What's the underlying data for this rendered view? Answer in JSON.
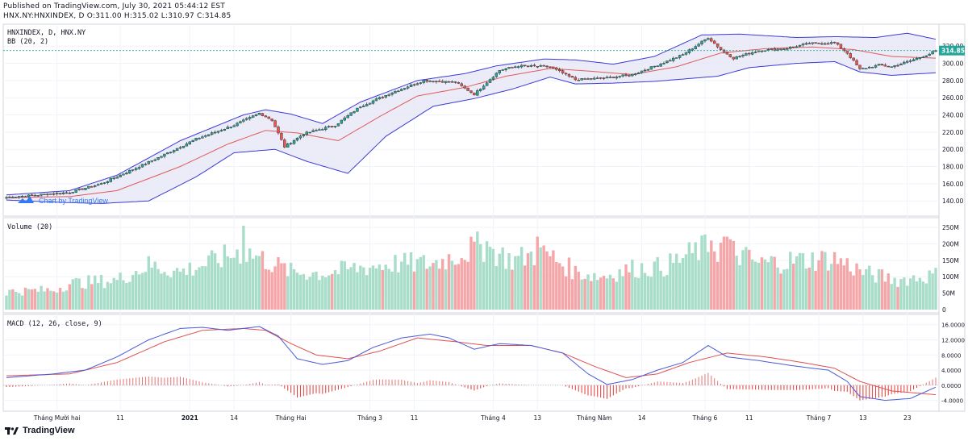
{
  "header": {
    "published": "Published on TradingView.com, July 30, 2021 05:44:12 EST",
    "ohlc": "HNX.NY:HNXINDEX, D O:311.00 H:315.02 L:310.97 C:314.85"
  },
  "panes": {
    "price": {
      "title": "HNXINDEX, D, HNX.NY",
      "indicator": "BB (20, 2)",
      "watermark": "Chart by TradingView",
      "last_label": "314.85"
    },
    "volume": {
      "title": "Volume (20)"
    },
    "macd": {
      "title": "MACD (12, 26, close, 9)"
    }
  },
  "footer": {
    "brand": "TradingView"
  },
  "colors": {
    "up": "#26a69a",
    "down": "#ef5350",
    "band": "#3b3bd6",
    "mid": "#e05a5a",
    "fill": "#e6e6f5",
    "vol_up": "#a8ddc9",
    "vol_down": "#f5a6a9",
    "macd": "#4a5ad8",
    "signal": "#e05050"
  },
  "chart_data": [
    {
      "type": "candlestick",
      "title": "HNXINDEX, D, HNX.NY",
      "indicator": "BB (20, 2)",
      "ylim": [
        128,
        338
      ],
      "yticks": [
        "140.00",
        "160.00",
        "180.00",
        "200.00",
        "220.00",
        "240.00",
        "260.00",
        "280.00",
        "300.00",
        "320.00"
      ],
      "last_value": 314.85,
      "x_labels": [
        "Tháng Mười hai",
        "11",
        "2021",
        "14",
        "Tháng Hai",
        "Tháng 3",
        "11",
        "Tháng 4",
        "13",
        "Tháng Năm",
        "14",
        "Tháng 6",
        "11",
        "Tháng 7",
        "13",
        "23"
      ],
      "x_label_index": [
        16,
        36,
        58,
        72,
        90,
        115,
        129,
        154,
        168,
        186,
        201,
        221,
        235,
        257,
        271,
        285
      ],
      "close_anchors": [
        [
          0,
          144
        ],
        [
          10,
          147
        ],
        [
          20,
          150
        ],
        [
          30,
          160
        ],
        [
          45,
          185
        ],
        [
          60,
          212
        ],
        [
          72,
          228
        ],
        [
          80,
          242
        ],
        [
          84,
          234
        ],
        [
          88,
          203
        ],
        [
          94,
          218
        ],
        [
          104,
          228
        ],
        [
          112,
          250
        ],
        [
          122,
          266
        ],
        [
          132,
          280
        ],
        [
          142,
          278
        ],
        [
          148,
          264
        ],
        [
          156,
          292
        ],
        [
          162,
          297
        ],
        [
          172,
          296
        ],
        [
          180,
          281
        ],
        [
          190,
          283
        ],
        [
          198,
          287
        ],
        [
          206,
          298
        ],
        [
          214,
          310
        ],
        [
          222,
          330
        ],
        [
          226,
          316
        ],
        [
          230,
          306
        ],
        [
          238,
          315
        ],
        [
          246,
          317
        ],
        [
          254,
          323
        ],
        [
          262,
          324
        ],
        [
          266,
          312
        ],
        [
          270,
          293
        ],
        [
          276,
          298
        ],
        [
          280,
          296
        ],
        [
          286,
          303
        ],
        [
          292,
          311
        ],
        [
          294,
          314.85
        ]
      ],
      "bb_upper_anchors": [
        [
          0,
          147
        ],
        [
          20,
          152
        ],
        [
          35,
          170
        ],
        [
          55,
          210
        ],
        [
          75,
          240
        ],
        [
          82,
          246
        ],
        [
          90,
          241
        ],
        [
          100,
          230
        ],
        [
          112,
          255
        ],
        [
          130,
          280
        ],
        [
          145,
          288
        ],
        [
          155,
          297
        ],
        [
          170,
          305
        ],
        [
          180,
          304
        ],
        [
          192,
          299
        ],
        [
          205,
          308
        ],
        [
          220,
          333
        ],
        [
          232,
          334
        ],
        [
          250,
          330
        ],
        [
          262,
          331
        ],
        [
          275,
          330
        ],
        [
          285,
          335
        ],
        [
          294,
          328
        ]
      ],
      "bb_lower_anchors": [
        [
          0,
          141
        ],
        [
          20,
          138
        ],
        [
          30,
          137
        ],
        [
          45,
          140
        ],
        [
          60,
          168
        ],
        [
          72,
          196
        ],
        [
          85,
          200
        ],
        [
          95,
          186
        ],
        [
          108,
          172
        ],
        [
          120,
          215
        ],
        [
          135,
          250
        ],
        [
          148,
          259
        ],
        [
          160,
          270
        ],
        [
          172,
          284
        ],
        [
          180,
          276
        ],
        [
          192,
          277
        ],
        [
          205,
          279
        ],
        [
          215,
          282
        ],
        [
          225,
          285
        ],
        [
          235,
          295
        ],
        [
          250,
          300
        ],
        [
          262,
          302
        ],
        [
          270,
          290
        ],
        [
          280,
          286
        ],
        [
          294,
          289
        ]
      ],
      "bb_mid_anchors": [
        [
          0,
          144
        ],
        [
          20,
          145
        ],
        [
          35,
          152
        ],
        [
          55,
          180
        ],
        [
          70,
          206
        ],
        [
          82,
          222
        ],
        [
          92,
          219
        ],
        [
          105,
          210
        ],
        [
          118,
          238
        ],
        [
          130,
          262
        ],
        [
          145,
          272
        ],
        [
          158,
          285
        ],
        [
          172,
          294
        ],
        [
          184,
          291
        ],
        [
          198,
          287
        ],
        [
          212,
          296
        ],
        [
          226,
          312
        ],
        [
          240,
          317
        ],
        [
          255,
          319
        ],
        [
          268,
          316
        ],
        [
          280,
          308
        ],
        [
          294,
          306
        ]
      ]
    },
    {
      "type": "bar",
      "title": "Volume (20)",
      "ylim": [
        0,
        260
      ],
      "yticks": [
        "0",
        "50M",
        "100M",
        "150M",
        "200M",
        "250M"
      ],
      "unit": "M",
      "anchors": [
        [
          0,
          55
        ],
        [
          15,
          60
        ],
        [
          20,
          80
        ],
        [
          35,
          90
        ],
        [
          45,
          135
        ],
        [
          55,
          115
        ],
        [
          65,
          145
        ],
        [
          75,
          180
        ],
        [
          82,
          150
        ],
        [
          90,
          115
        ],
        [
          100,
          110
        ],
        [
          110,
          125
        ],
        [
          122,
          140
        ],
        [
          135,
          140
        ],
        [
          145,
          175
        ],
        [
          150,
          195
        ],
        [
          160,
          150
        ],
        [
          170,
          175
        ],
        [
          180,
          115
        ],
        [
          188,
          100
        ],
        [
          198,
          125
        ],
        [
          208,
          130
        ],
        [
          220,
          185
        ],
        [
          228,
          185
        ],
        [
          238,
          140
        ],
        [
          250,
          150
        ],
        [
          262,
          155
        ],
        [
          272,
          110
        ],
        [
          282,
          90
        ],
        [
          294,
          105
        ]
      ],
      "spikes": [
        [
          75,
          255
        ],
        [
          152,
          208
        ],
        [
          168,
          222
        ],
        [
          227,
          222
        ],
        [
          228,
          222
        ],
        [
          170,
          195
        ],
        [
          223,
          210
        ]
      ]
    },
    {
      "type": "line",
      "title": "MACD (12, 26, close, 9)",
      "ylim": [
        -6,
        17
      ],
      "yticks": [
        "-4.0000",
        "0.0000",
        "4.0000",
        "8.0000",
        "12.0000",
        "16.0000"
      ],
      "macd_anchors": [
        [
          0,
          2
        ],
        [
          15,
          3
        ],
        [
          25,
          4
        ],
        [
          35,
          7.5
        ],
        [
          45,
          12
        ],
        [
          55,
          15
        ],
        [
          62,
          15.3
        ],
        [
          70,
          14.5
        ],
        [
          80,
          15.5
        ],
        [
          86,
          13
        ],
        [
          92,
          7
        ],
        [
          100,
          5.5
        ],
        [
          108,
          6.5
        ],
        [
          116,
          10
        ],
        [
          125,
          12.5
        ],
        [
          134,
          13.5
        ],
        [
          140,
          12.5
        ],
        [
          148,
          9.5
        ],
        [
          156,
          11
        ],
        [
          166,
          10.5
        ],
        [
          176,
          8.5
        ],
        [
          184,
          3
        ],
        [
          190,
          0.2
        ],
        [
          198,
          1.5
        ],
        [
          206,
          4
        ],
        [
          214,
          6
        ],
        [
          222,
          10.5
        ],
        [
          228,
          7.5
        ],
        [
          238,
          6.5
        ],
        [
          250,
          5
        ],
        [
          260,
          4
        ],
        [
          266,
          1
        ],
        [
          270,
          -3
        ],
        [
          278,
          -4
        ],
        [
          286,
          -3.5
        ],
        [
          294,
          -0.5
        ]
      ],
      "signal_anchors": [
        [
          0,
          2.5
        ],
        [
          20,
          3
        ],
        [
          35,
          6
        ],
        [
          50,
          11.5
        ],
        [
          62,
          14.5
        ],
        [
          75,
          15
        ],
        [
          82,
          14.5
        ],
        [
          90,
          11
        ],
        [
          98,
          8
        ],
        [
          108,
          7
        ],
        [
          118,
          9
        ],
        [
          130,
          12.5
        ],
        [
          142,
          11.5
        ],
        [
          152,
          10.5
        ],
        [
          166,
          10.5
        ],
        [
          176,
          8.5
        ],
        [
          186,
          5
        ],
        [
          196,
          2
        ],
        [
          206,
          3
        ],
        [
          216,
          6
        ],
        [
          228,
          8.5
        ],
        [
          240,
          7.5
        ],
        [
          252,
          6
        ],
        [
          262,
          4.5
        ],
        [
          270,
          1
        ],
        [
          280,
          -1.5
        ],
        [
          294,
          -2.5
        ]
      ]
    }
  ]
}
